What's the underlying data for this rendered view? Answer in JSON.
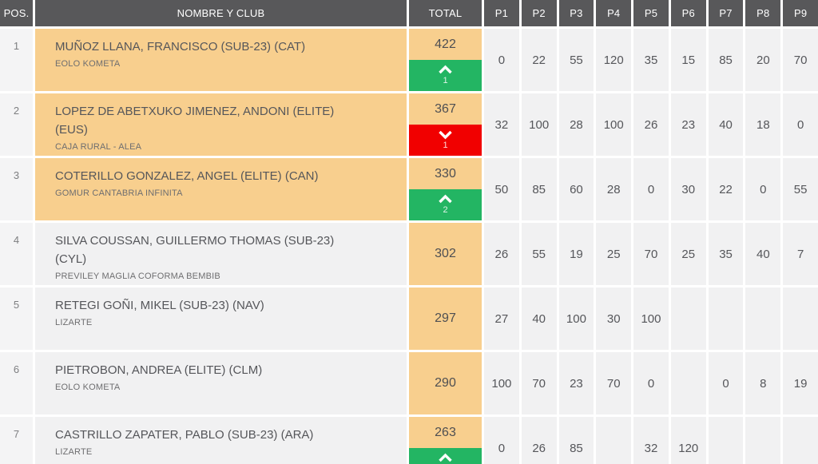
{
  "table": {
    "headers": {
      "pos": "POS.",
      "name_club": "NOMBRE Y CLUB",
      "total": "TOTAL",
      "stages": [
        "P1",
        "P2",
        "P3",
        "P4",
        "P5",
        "P6",
        "P7",
        "P8",
        "P9"
      ]
    },
    "rows": [
      {
        "pos": "1",
        "name_lines": [
          "MUÑOZ LLANA, FRANCISCO (SUB-23) (CAT)"
        ],
        "club": "EOLO KOMETA",
        "total": "422",
        "highlight": true,
        "movement": {
          "direction": "up",
          "amount": "1"
        },
        "points": [
          "0",
          "22",
          "55",
          "120",
          "35",
          "15",
          "85",
          "20",
          "70"
        ]
      },
      {
        "pos": "2",
        "name_lines": [
          "LOPEZ DE ABETXUKO JIMENEZ, ANDONI (ELITE)",
          "(EUS)"
        ],
        "club": "CAJA RURAL - ALEA",
        "total": "367",
        "highlight": true,
        "movement": {
          "direction": "down",
          "amount": "1"
        },
        "points": [
          "32",
          "100",
          "28",
          "100",
          "26",
          "23",
          "40",
          "18",
          "0"
        ]
      },
      {
        "pos": "3",
        "name_lines": [
          "COTERILLO GONZALEZ, ANGEL (ELITE) (CAN)"
        ],
        "club": "GOMUR CANTABRIA INFINITA",
        "total": "330",
        "highlight": true,
        "movement": {
          "direction": "up",
          "amount": "2"
        },
        "points": [
          "50",
          "85",
          "60",
          "28",
          "0",
          "30",
          "22",
          "0",
          "55"
        ]
      },
      {
        "pos": "4",
        "name_lines": [
          "SILVA COUSSAN, GUILLERMO THOMAS (SUB-23)",
          "(CYL)"
        ],
        "club": "PREVILEY MAGLIA COFORMA BEMBIB",
        "total": "302",
        "highlight": false,
        "movement": null,
        "points": [
          "26",
          "55",
          "19",
          "25",
          "70",
          "25",
          "35",
          "40",
          "7"
        ]
      },
      {
        "pos": "5",
        "name_lines": [
          "RETEGI GOÑI, MIKEL (SUB-23) (NAV)"
        ],
        "club": "LIZARTE",
        "total": "297",
        "highlight": false,
        "movement": null,
        "points": [
          "27",
          "40",
          "100",
          "30",
          "100",
          "",
          "",
          "",
          ""
        ]
      },
      {
        "pos": "6",
        "name_lines": [
          "PIETROBON, ANDREA (ELITE) (CLM)"
        ],
        "club": "EOLO KOMETA",
        "total": "290",
        "highlight": false,
        "movement": null,
        "points": [
          "100",
          "70",
          "23",
          "70",
          "0",
          "",
          "0",
          "8",
          "19"
        ]
      },
      {
        "pos": "7",
        "name_lines": [
          "CASTRILLO ZAPATER, PABLO (SUB-23) (ARA)"
        ],
        "club": "LIZARTE",
        "total": "263",
        "highlight": false,
        "movement": {
          "direction": "up",
          "amount": ""
        },
        "points": [
          "0",
          "26",
          "85",
          "",
          "32",
          "120",
          "",
          "",
          ""
        ]
      }
    ],
    "colors": {
      "header_bg": "#58585a",
      "highlight_orange": "#f8cf8e",
      "movement_up_green": "#23b563",
      "movement_down_red": "#f10000",
      "cell_bg": "#f1f1f2"
    }
  }
}
